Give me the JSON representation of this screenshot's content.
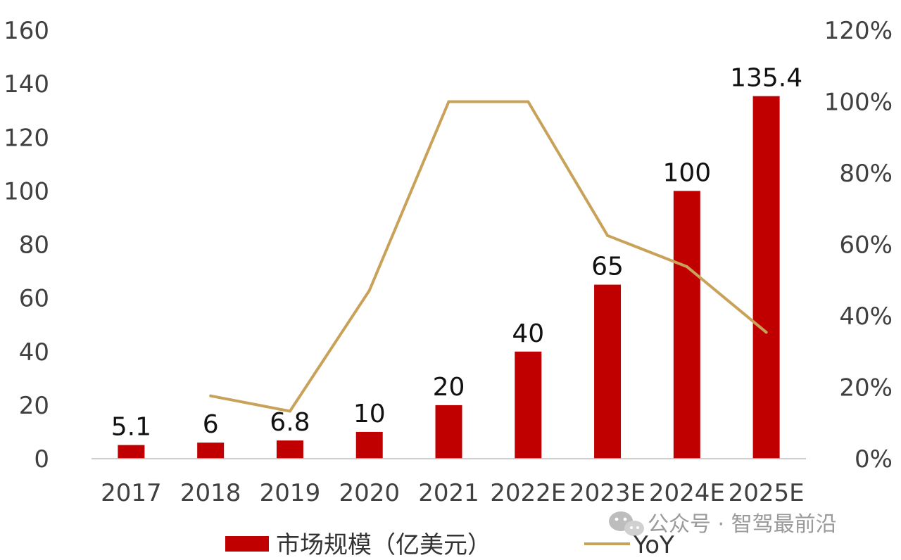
{
  "chart_data": {
    "type": "bar",
    "categories": [
      "2017",
      "2018",
      "2019",
      "2020",
      "2021",
      "2022E",
      "2023E",
      "2024E",
      "2025E"
    ],
    "series": [
      {
        "name": "市场规模（亿美元）",
        "type": "bar",
        "axis": "left",
        "values": [
          5.1,
          6,
          6.8,
          10,
          20,
          40,
          65,
          100,
          135.4
        ],
        "data_labels": [
          "5.1",
          "6",
          "6.8",
          "10",
          "20",
          "40",
          "65",
          "100",
          "135.4"
        ],
        "color": "#c00000"
      },
      {
        "name": "YoY",
        "type": "line",
        "axis": "right",
        "values": [
          null,
          17.6,
          13.3,
          47.1,
          100,
          100,
          62.5,
          53.8,
          35.4
        ],
        "color": "#c9a25a"
      }
    ],
    "y_left": {
      "min": 0,
      "max": 160,
      "ticks": [
        "0",
        "20",
        "40",
        "60",
        "80",
        "100",
        "120",
        "140",
        "160"
      ]
    },
    "y_right": {
      "min": 0,
      "max": 120,
      "ticks": [
        "0%",
        "20%",
        "40%",
        "60%",
        "80%",
        "100%",
        "120%"
      ]
    },
    "grid": false,
    "legend": "bottom",
    "title": "",
    "xlabel": "",
    "ylabel": ""
  },
  "watermark": {
    "text": "公众号 · 智驾最前沿"
  }
}
